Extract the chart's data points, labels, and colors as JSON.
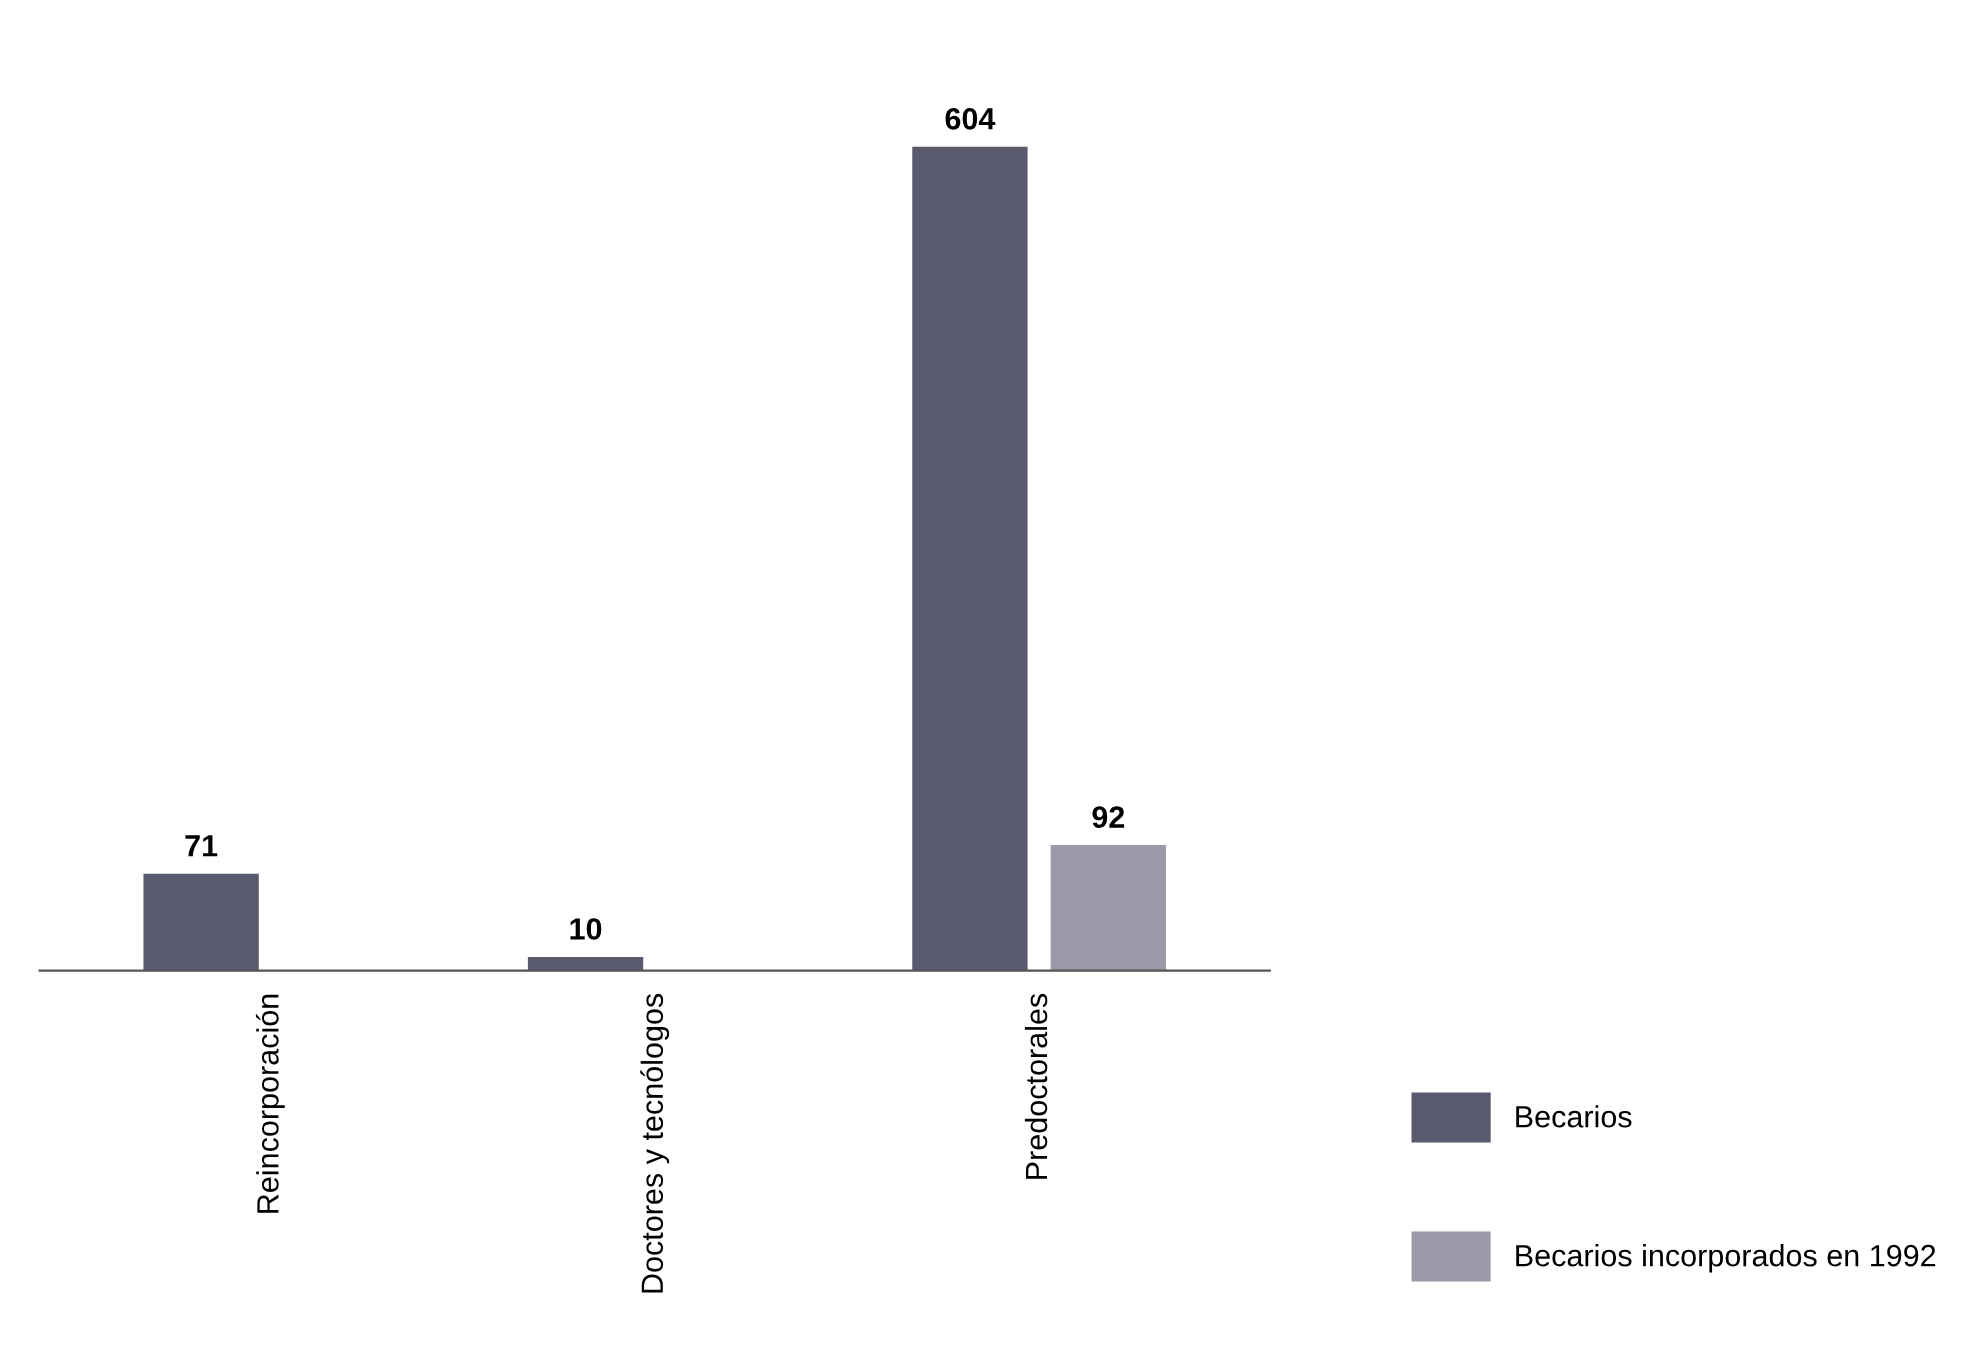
{
  "chart_data": {
    "type": "bar",
    "categories": [
      "Reincorporación",
      "Doctores y tecnólogos",
      "Predoctorales"
    ],
    "series": [
      {
        "name": "Becarios",
        "color": "#5a5a6e",
        "values": [
          71,
          10,
          604
        ]
      },
      {
        "name": "Becarios incorporados en 1992",
        "color": "#9a9aa8",
        "values": [
          null,
          null,
          92
        ]
      }
    ],
    "data_labels": true,
    "legend": "bottom right"
  }
}
